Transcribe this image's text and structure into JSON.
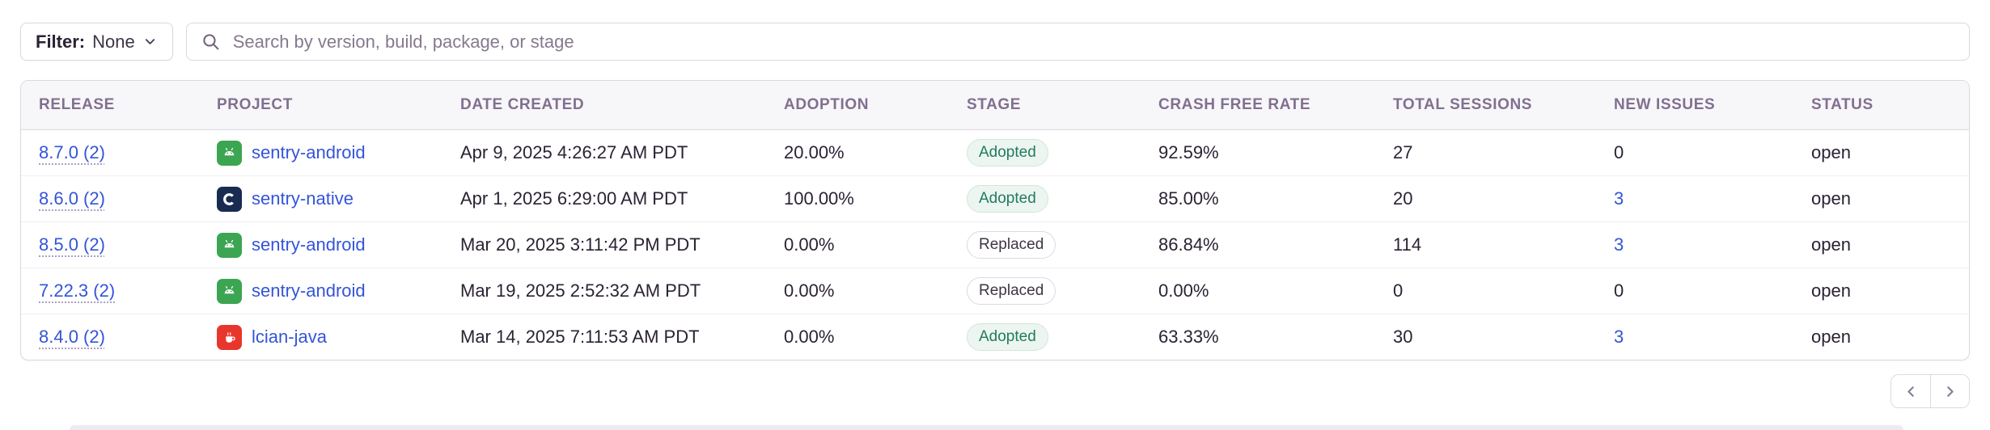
{
  "filter": {
    "label": "Filter:",
    "value": "None"
  },
  "search": {
    "placeholder": "Search by version, build, package, or stage"
  },
  "table": {
    "columns": [
      "RELEASE",
      "PROJECT",
      "DATE CREATED",
      "ADOPTION",
      "STAGE",
      "CRASH FREE RATE",
      "TOTAL SESSIONS",
      "NEW ISSUES",
      "STATUS"
    ],
    "rows": [
      {
        "release": "8.7.0 (2)",
        "project": "sentry-android",
        "platform": "android",
        "date_created": "Apr 9, 2025 4:26:27 AM PDT",
        "adoption": "20.00%",
        "stage": "Adopted",
        "crash_free_rate": "92.59%",
        "total_sessions": "27",
        "new_issues": "0",
        "new_issues_is_link": false,
        "status": "open"
      },
      {
        "release": "8.6.0 (2)",
        "project": "sentry-native",
        "platform": "native",
        "date_created": "Apr 1, 2025 6:29:00 AM PDT",
        "adoption": "100.00%",
        "stage": "Adopted",
        "crash_free_rate": "85.00%",
        "total_sessions": "20",
        "new_issues": "3",
        "new_issues_is_link": true,
        "status": "open"
      },
      {
        "release": "8.5.0 (2)",
        "project": "sentry-android",
        "platform": "android",
        "date_created": "Mar 20, 2025 3:11:42 PM PDT",
        "adoption": "0.00%",
        "stage": "Replaced",
        "crash_free_rate": "86.84%",
        "total_sessions": "114",
        "new_issues": "3",
        "new_issues_is_link": true,
        "status": "open"
      },
      {
        "release": "7.22.3 (2)",
        "project": "sentry-android",
        "platform": "android",
        "date_created": "Mar 19, 2025 2:52:32 AM PDT",
        "adoption": "0.00%",
        "stage": "Replaced",
        "crash_free_rate": "0.00%",
        "total_sessions": "0",
        "new_issues": "0",
        "new_issues_is_link": false,
        "status": "open"
      },
      {
        "release": "8.4.0 (2)",
        "project": "lcian-java",
        "platform": "java",
        "date_created": "Mar 14, 2025 7:11:53 AM PDT",
        "adoption": "0.00%",
        "stage": "Adopted",
        "crash_free_rate": "63.33%",
        "total_sessions": "30",
        "new_issues": "3",
        "new_issues_is_link": true,
        "status": "open"
      }
    ]
  },
  "pagination": {
    "previous_icon": "chevron-left-icon",
    "next_icon": "chevron-right-icon"
  },
  "icons": {
    "search": "search-icon",
    "filter_chevron": "chevron-down-icon",
    "android": "android-icon",
    "native": "c-icon",
    "java": "java-icon"
  },
  "colors": {
    "link_blue": "#3354d9",
    "body_text": "#2b2233",
    "header_text": "#80708f",
    "header_bg": "#f7f6f9",
    "border": "#dcd8e2",
    "row_border": "#efedf2",
    "adopted_text": "#207c60",
    "adopted_bg": "#edf5f1",
    "adopted_border": "#d0e6da",
    "android_green": "#3ba552",
    "native_navy": "#1a2b52",
    "java_red": "#e8362d"
  }
}
